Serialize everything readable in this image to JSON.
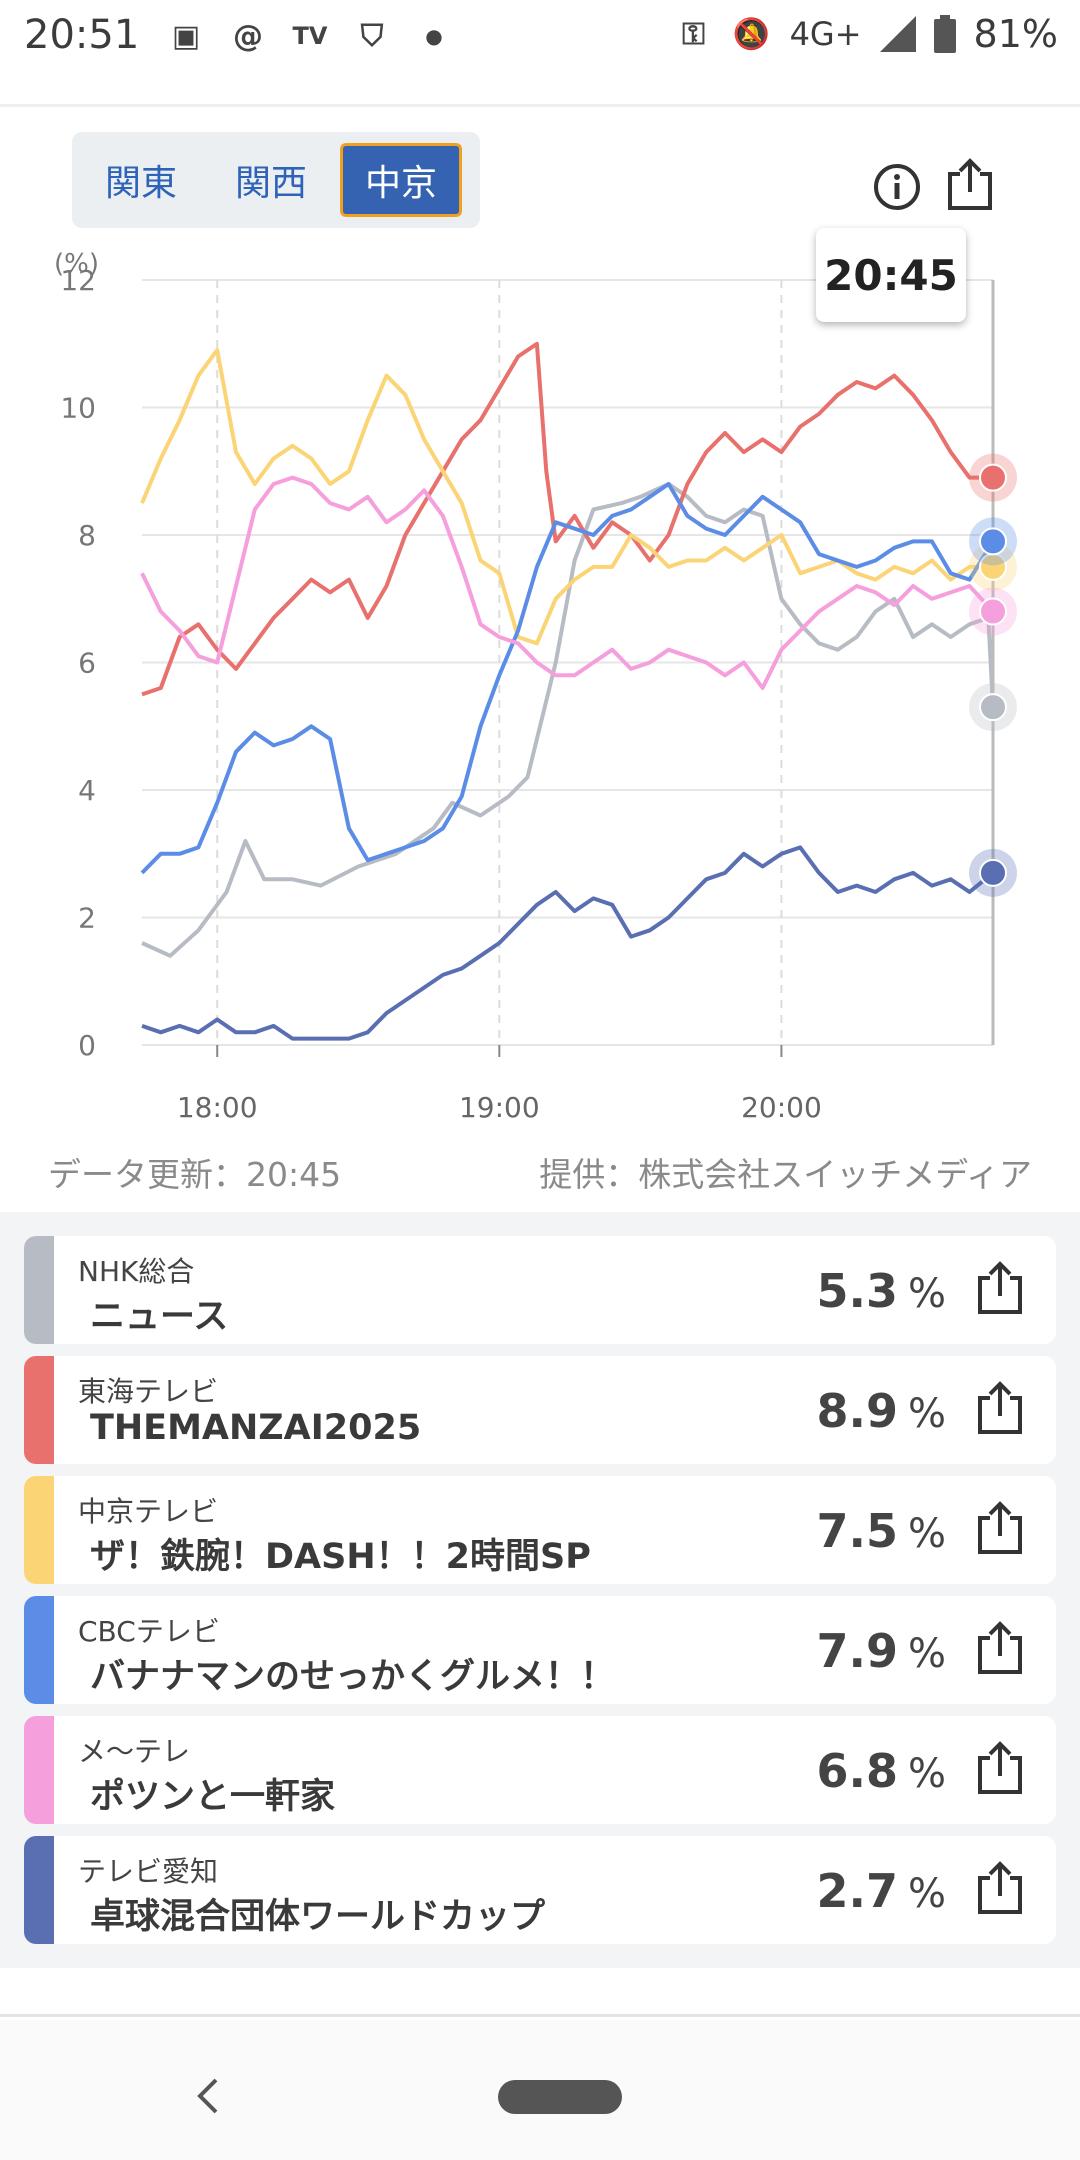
{
  "status_bar": {
    "time": "20:51",
    "network": "4G+",
    "battery": "81%"
  },
  "regions": [
    {
      "label": "関東",
      "active": false
    },
    {
      "label": "関西",
      "active": false
    },
    {
      "label": "中京",
      "active": true
    }
  ],
  "chart_data": {
    "type": "line",
    "ylabel": "(%)",
    "ylim": [
      0,
      12
    ],
    "yticks": [
      "0",
      "2",
      "4",
      "6",
      "8",
      "10",
      "12"
    ],
    "xticks": [
      "18:00",
      "19:00",
      "20:00"
    ],
    "xrange_minutes": [
      1064,
      1245
    ],
    "tooltip_time": "20:45",
    "grid": true,
    "series": [
      {
        "color": "#b7bcc4",
        "end": 5.3,
        "points": [
          [
            1064,
            1.6
          ],
          [
            1070,
            1.4
          ],
          [
            1076,
            1.8
          ],
          [
            1082,
            2.4
          ],
          [
            1086,
            3.2
          ],
          [
            1090,
            2.6
          ],
          [
            1096,
            2.6
          ],
          [
            1102,
            2.5
          ],
          [
            1110,
            2.8
          ],
          [
            1118,
            3.0
          ],
          [
            1126,
            3.4
          ],
          [
            1130,
            3.8
          ],
          [
            1136,
            3.6
          ],
          [
            1142,
            3.9
          ],
          [
            1146,
            4.2
          ],
          [
            1152,
            6.0
          ],
          [
            1156,
            7.6
          ],
          [
            1160,
            8.4
          ],
          [
            1166,
            8.5
          ],
          [
            1170,
            8.6
          ],
          [
            1176,
            8.8
          ],
          [
            1180,
            8.6
          ],
          [
            1184,
            8.3
          ],
          [
            1188,
            8.2
          ],
          [
            1192,
            8.4
          ],
          [
            1196,
            8.3
          ],
          [
            1200,
            7.0
          ],
          [
            1204,
            6.6
          ],
          [
            1208,
            6.3
          ],
          [
            1212,
            6.2
          ],
          [
            1216,
            6.4
          ],
          [
            1220,
            6.8
          ],
          [
            1224,
            7.0
          ],
          [
            1228,
            6.4
          ],
          [
            1232,
            6.6
          ],
          [
            1236,
            6.4
          ],
          [
            1240,
            6.6
          ],
          [
            1244,
            6.7
          ],
          [
            1245,
            5.3
          ]
        ]
      },
      {
        "color": "#e8706d",
        "end": 8.9,
        "points": [
          [
            1064,
            5.5
          ],
          [
            1068,
            5.6
          ],
          [
            1072,
            6.4
          ],
          [
            1076,
            6.6
          ],
          [
            1080,
            6.2
          ],
          [
            1084,
            5.9
          ],
          [
            1088,
            6.3
          ],
          [
            1092,
            6.7
          ],
          [
            1096,
            7.0
          ],
          [
            1100,
            7.3
          ],
          [
            1104,
            7.1
          ],
          [
            1108,
            7.3
          ],
          [
            1112,
            6.7
          ],
          [
            1116,
            7.2
          ],
          [
            1120,
            8.0
          ],
          [
            1124,
            8.5
          ],
          [
            1128,
            9.0
          ],
          [
            1132,
            9.5
          ],
          [
            1136,
            9.8
          ],
          [
            1140,
            10.3
          ],
          [
            1144,
            10.8
          ],
          [
            1148,
            11.0
          ],
          [
            1150,
            9.0
          ],
          [
            1152,
            7.9
          ],
          [
            1156,
            8.3
          ],
          [
            1160,
            7.8
          ],
          [
            1164,
            8.2
          ],
          [
            1168,
            8.0
          ],
          [
            1172,
            7.6
          ],
          [
            1176,
            8.0
          ],
          [
            1180,
            8.8
          ],
          [
            1184,
            9.3
          ],
          [
            1188,
            9.6
          ],
          [
            1192,
            9.3
          ],
          [
            1196,
            9.5
          ],
          [
            1200,
            9.3
          ],
          [
            1204,
            9.7
          ],
          [
            1208,
            9.9
          ],
          [
            1212,
            10.2
          ],
          [
            1216,
            10.4
          ],
          [
            1220,
            10.3
          ],
          [
            1224,
            10.5
          ],
          [
            1228,
            10.2
          ],
          [
            1232,
            9.8
          ],
          [
            1236,
            9.3
          ],
          [
            1240,
            8.9
          ],
          [
            1245,
            8.9
          ]
        ]
      },
      {
        "color": "#fbd476",
        "end": 7.5,
        "points": [
          [
            1064,
            8.5
          ],
          [
            1068,
            9.2
          ],
          [
            1072,
            9.8
          ],
          [
            1076,
            10.5
          ],
          [
            1080,
            10.9
          ],
          [
            1084,
            9.3
          ],
          [
            1088,
            8.8
          ],
          [
            1092,
            9.2
          ],
          [
            1096,
            9.4
          ],
          [
            1100,
            9.2
          ],
          [
            1104,
            8.8
          ],
          [
            1108,
            9.0
          ],
          [
            1112,
            9.8
          ],
          [
            1116,
            10.5
          ],
          [
            1120,
            10.2
          ],
          [
            1124,
            9.5
          ],
          [
            1128,
            9.0
          ],
          [
            1132,
            8.5
          ],
          [
            1136,
            7.6
          ],
          [
            1140,
            7.4
          ],
          [
            1144,
            6.4
          ],
          [
            1148,
            6.3
          ],
          [
            1152,
            7.0
          ],
          [
            1156,
            7.3
          ],
          [
            1160,
            7.5
          ],
          [
            1164,
            7.5
          ],
          [
            1168,
            8.0
          ],
          [
            1172,
            7.8
          ],
          [
            1176,
            7.5
          ],
          [
            1180,
            7.6
          ],
          [
            1184,
            7.6
          ],
          [
            1188,
            7.8
          ],
          [
            1192,
            7.6
          ],
          [
            1196,
            7.8
          ],
          [
            1200,
            8.0
          ],
          [
            1204,
            7.4
          ],
          [
            1208,
            7.5
          ],
          [
            1212,
            7.6
          ],
          [
            1216,
            7.4
          ],
          [
            1220,
            7.3
          ],
          [
            1224,
            7.5
          ],
          [
            1228,
            7.4
          ],
          [
            1232,
            7.6
          ],
          [
            1236,
            7.3
          ],
          [
            1240,
            7.5
          ],
          [
            1245,
            7.5
          ]
        ]
      },
      {
        "color": "#5b8de6",
        "end": 7.9,
        "points": [
          [
            1064,
            2.7
          ],
          [
            1068,
            3.0
          ],
          [
            1072,
            3.0
          ],
          [
            1076,
            3.1
          ],
          [
            1080,
            3.8
          ],
          [
            1084,
            4.6
          ],
          [
            1088,
            4.9
          ],
          [
            1092,
            4.7
          ],
          [
            1096,
            4.8
          ],
          [
            1100,
            5.0
          ],
          [
            1104,
            4.8
          ],
          [
            1108,
            3.4
          ],
          [
            1112,
            2.9
          ],
          [
            1116,
            3.0
          ],
          [
            1120,
            3.1
          ],
          [
            1124,
            3.2
          ],
          [
            1128,
            3.4
          ],
          [
            1132,
            3.9
          ],
          [
            1136,
            5.0
          ],
          [
            1140,
            5.8
          ],
          [
            1144,
            6.5
          ],
          [
            1148,
            7.5
          ],
          [
            1152,
            8.2
          ],
          [
            1156,
            8.1
          ],
          [
            1160,
            8.0
          ],
          [
            1164,
            8.3
          ],
          [
            1168,
            8.4
          ],
          [
            1172,
            8.6
          ],
          [
            1176,
            8.8
          ],
          [
            1180,
            8.3
          ],
          [
            1184,
            8.1
          ],
          [
            1188,
            8.0
          ],
          [
            1192,
            8.3
          ],
          [
            1196,
            8.6
          ],
          [
            1200,
            8.4
          ],
          [
            1204,
            8.2
          ],
          [
            1208,
            7.7
          ],
          [
            1212,
            7.6
          ],
          [
            1216,
            7.5
          ],
          [
            1220,
            7.6
          ],
          [
            1224,
            7.8
          ],
          [
            1228,
            7.9
          ],
          [
            1232,
            7.9
          ],
          [
            1236,
            7.4
          ],
          [
            1240,
            7.3
          ],
          [
            1245,
            7.9
          ]
        ]
      },
      {
        "color": "#f59fdc",
        "end": 6.8,
        "points": [
          [
            1064,
            7.4
          ],
          [
            1068,
            6.8
          ],
          [
            1072,
            6.5
          ],
          [
            1076,
            6.1
          ],
          [
            1080,
            6.0
          ],
          [
            1084,
            7.2
          ],
          [
            1088,
            8.4
          ],
          [
            1092,
            8.8
          ],
          [
            1096,
            8.9
          ],
          [
            1100,
            8.8
          ],
          [
            1104,
            8.5
          ],
          [
            1108,
            8.4
          ],
          [
            1112,
            8.6
          ],
          [
            1116,
            8.2
          ],
          [
            1120,
            8.4
          ],
          [
            1124,
            8.7
          ],
          [
            1128,
            8.3
          ],
          [
            1132,
            7.5
          ],
          [
            1136,
            6.6
          ],
          [
            1140,
            6.4
          ],
          [
            1144,
            6.3
          ],
          [
            1148,
            6.0
          ],
          [
            1152,
            5.8
          ],
          [
            1156,
            5.8
          ],
          [
            1160,
            6.0
          ],
          [
            1164,
            6.2
          ],
          [
            1168,
            5.9
          ],
          [
            1172,
            6.0
          ],
          [
            1176,
            6.2
          ],
          [
            1180,
            6.1
          ],
          [
            1184,
            6.0
          ],
          [
            1188,
            5.8
          ],
          [
            1192,
            6.0
          ],
          [
            1196,
            5.6
          ],
          [
            1200,
            6.2
          ],
          [
            1204,
            6.5
          ],
          [
            1208,
            6.8
          ],
          [
            1212,
            7.0
          ],
          [
            1216,
            7.2
          ],
          [
            1220,
            7.1
          ],
          [
            1224,
            6.9
          ],
          [
            1228,
            7.2
          ],
          [
            1232,
            7.0
          ],
          [
            1236,
            7.1
          ],
          [
            1240,
            7.2
          ],
          [
            1245,
            6.8
          ]
        ]
      },
      {
        "color": "#5a6eb2",
        "end": 2.7,
        "points": [
          [
            1064,
            0.3
          ],
          [
            1068,
            0.2
          ],
          [
            1072,
            0.3
          ],
          [
            1076,
            0.2
          ],
          [
            1080,
            0.4
          ],
          [
            1084,
            0.2
          ],
          [
            1088,
            0.2
          ],
          [
            1092,
            0.3
          ],
          [
            1096,
            0.1
          ],
          [
            1100,
            0.1
          ],
          [
            1104,
            0.1
          ],
          [
            1108,
            0.1
          ],
          [
            1112,
            0.2
          ],
          [
            1116,
            0.5
          ],
          [
            1120,
            0.7
          ],
          [
            1124,
            0.9
          ],
          [
            1128,
            1.1
          ],
          [
            1132,
            1.2
          ],
          [
            1136,
            1.4
          ],
          [
            1140,
            1.6
          ],
          [
            1144,
            1.9
          ],
          [
            1148,
            2.2
          ],
          [
            1152,
            2.4
          ],
          [
            1156,
            2.1
          ],
          [
            1160,
            2.3
          ],
          [
            1164,
            2.2
          ],
          [
            1168,
            1.7
          ],
          [
            1172,
            1.8
          ],
          [
            1176,
            2.0
          ],
          [
            1180,
            2.3
          ],
          [
            1184,
            2.6
          ],
          [
            1188,
            2.7
          ],
          [
            1192,
            3.0
          ],
          [
            1196,
            2.8
          ],
          [
            1200,
            3.0
          ],
          [
            1204,
            3.1
          ],
          [
            1208,
            2.7
          ],
          [
            1212,
            2.4
          ],
          [
            1216,
            2.5
          ],
          [
            1220,
            2.4
          ],
          [
            1224,
            2.6
          ],
          [
            1228,
            2.7
          ],
          [
            1232,
            2.5
          ],
          [
            1236,
            2.6
          ],
          [
            1240,
            2.4
          ],
          [
            1245,
            2.7
          ]
        ]
      }
    ]
  },
  "update_label": "データ更新：20:45",
  "provider_label": "提供：株式会社スイッチメディア",
  "channels": [
    {
      "station": "NHK総合",
      "program": "ニュース",
      "rating": "5.3",
      "unit": "%",
      "color": "#b7bcc4"
    },
    {
      "station": "東海テレビ",
      "program": "THEMANZAI2025",
      "rating": "8.9",
      "unit": "%",
      "color": "#e8706d"
    },
    {
      "station": "中京テレビ",
      "program": "ザ！鉄腕！DASH！！2時間SP",
      "rating": "7.5",
      "unit": "%",
      "color": "#fbd476"
    },
    {
      "station": "CBCテレビ",
      "program": "バナナマンのせっかくグルメ！！",
      "rating": "7.9",
      "unit": "%",
      "color": "#5b8de6"
    },
    {
      "station": "メ～テレ",
      "program": "ポツンと一軒家",
      "rating": "6.8",
      "unit": "%",
      "color": "#f59fdc"
    },
    {
      "station": "テレビ愛知",
      "program": "卓球混合団体ワールドカップ",
      "rating": "2.7",
      "unit": "%",
      "color": "#5a6eb2"
    }
  ]
}
